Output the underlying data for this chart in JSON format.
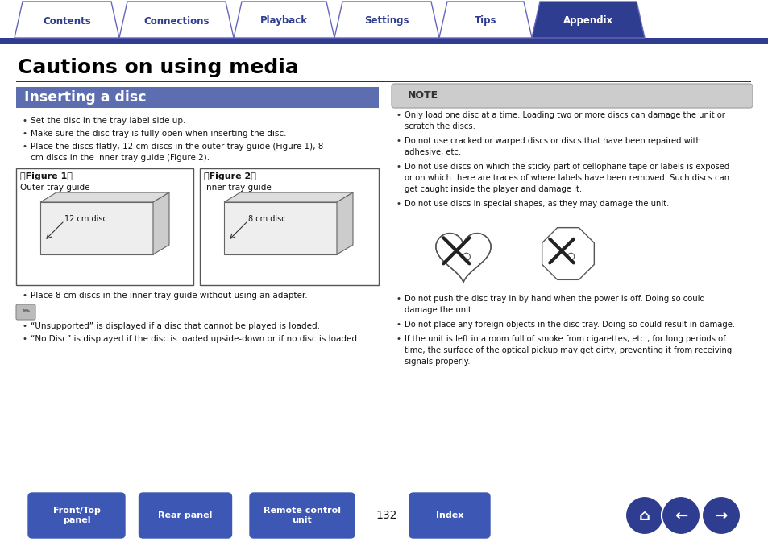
{
  "bg_color": "#ffffff",
  "nav_tabs": [
    "Contents",
    "Connections",
    "Playback",
    "Settings",
    "Tips",
    "Appendix"
  ],
  "nav_active": "Appendix",
  "nav_active_bg": "#2e3d8f",
  "nav_inactive_bg": "#ffffff",
  "nav_text_active": "#ffffff",
  "nav_text_inactive": "#2e3d8f",
  "nav_border_color": "#6666bb",
  "nav_bar_color": "#2e3d8f",
  "page_title": "Cautions on using media",
  "section_title": "Inserting a disc",
  "section_bg": "#5c6db0",
  "section_text_color": "#ffffff",
  "title_color": "#000000",
  "body_color": "#111111",
  "left_bullet1": "Set the disc in the tray label side up.",
  "left_bullet2": "Make sure the disc tray is fully open when inserting the disc.",
  "left_bullet3a": "Place the discs flatly, 12 cm discs in the outer tray guide (Figure 1), 8",
  "left_bullet3b": "cm discs in the inner tray guide (Figure 2).",
  "figure1_label": "『Figure 1』",
  "figure1_caption": "Outer tray guide",
  "figure1_disc": "12 cm disc",
  "figure2_label": "『Figure 2』",
  "figure2_caption": "Inner tray guide",
  "figure2_disc": "8 cm disc",
  "bottom_bullet": "Place 8 cm discs in the inner tray guide without using an adapter.",
  "note_bullet1": "“Unsupported” is displayed if a disc that cannot be played is loaded.",
  "note_bullet2": "“No Disc” is displayed if the disc is loaded upside-down or if no disc is loaded.",
  "note_label": "NOTE",
  "note_bg": "#cccccc",
  "right_b1a": "Only load one disc at a time. Loading two or more discs can damage the unit or",
  "right_b1b": "scratch the discs.",
  "right_b2a": "Do not use cracked or warped discs or discs that have been repaired with",
  "right_b2b": "adhesive, etc.",
  "right_b3a": "Do not use discs on which the sticky part of cellophane tape or labels is exposed",
  "right_b3b": "or on which there are traces of where labels have been removed. Such discs can",
  "right_b3c": "get caught inside the player and damage it.",
  "right_b4": "Do not use discs in special shapes, as they may damage the unit.",
  "right_b5a": "Do not push the disc tray in by hand when the power is off. Doing so could",
  "right_b5b": "damage the unit.",
  "right_b6": "Do not place any foreign objects in the disc tray. Doing so could result in damage.",
  "right_b7a": "If the unit is left in a room full of smoke from cigarettes, etc., for long periods of",
  "right_b7b": "time, the surface of the optical pickup may get dirty, preventing it from receiving",
  "right_b7c": "signals properly.",
  "page_number": "132",
  "footer_btn_color": "#3d57b5",
  "footer_btn_text": "#ffffff",
  "footer_b1": "Front/Top\npanel",
  "footer_b2": "Rear panel",
  "footer_b3": "Remote control\nunit",
  "footer_b4": "Index",
  "icon_color": "#2e3d8f"
}
